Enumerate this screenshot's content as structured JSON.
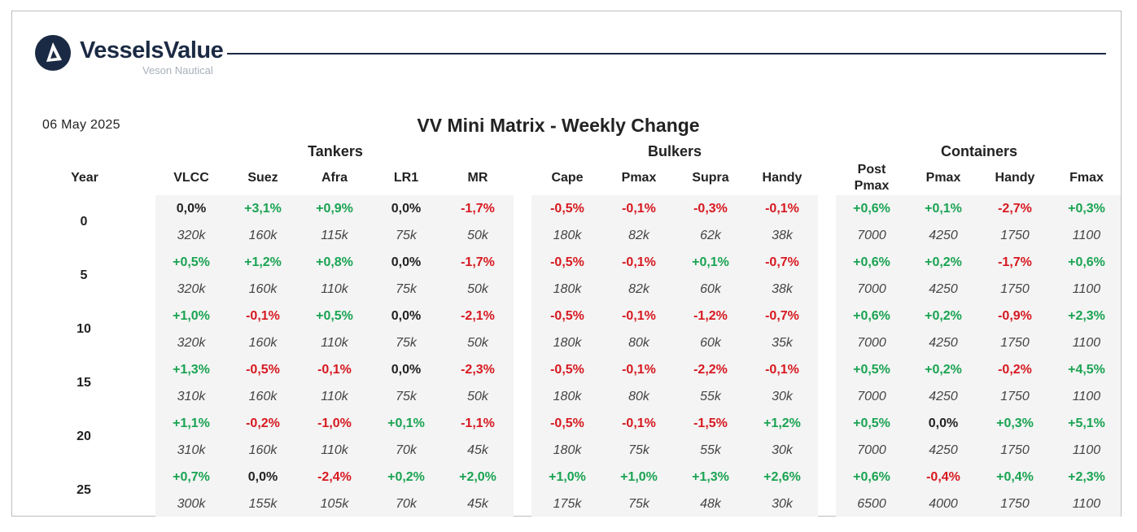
{
  "brand": {
    "name": "VesselsValue",
    "sub": "Veson Nautical"
  },
  "date": "06 May 2025",
  "title": "VV Mini Matrix - Weekly Change",
  "groups": [
    "Tankers",
    "Bulkers",
    "Containers"
  ],
  "year_label": "Year",
  "columns": [
    {
      "label": "VLCC",
      "group": "Tankers"
    },
    {
      "label": "Suez",
      "group": "Tankers"
    },
    {
      "label": "Afra",
      "group": "Tankers"
    },
    {
      "label": "LR1",
      "group": "Tankers"
    },
    {
      "label": "MR",
      "group": "Tankers"
    },
    {
      "label": "Cape",
      "group": "Bulkers"
    },
    {
      "label": "Pmax",
      "group": "Bulkers"
    },
    {
      "label": "Supra",
      "group": "Bulkers"
    },
    {
      "label": "Handy",
      "group": "Bulkers"
    },
    {
      "label": "Post Pmax",
      "group": "Containers"
    },
    {
      "label": "Pmax",
      "group": "Containers"
    },
    {
      "label": "Handy",
      "group": "Containers"
    },
    {
      "label": "Fmax",
      "group": "Containers"
    }
  ],
  "rows": [
    {
      "year": "0",
      "pct": [
        "0,0%",
        "+3,1%",
        "+0,9%",
        "0,0%",
        "-1,7%",
        "-0,5%",
        "-0,1%",
        "-0,3%",
        "-0,1%",
        "+0,6%",
        "+0,1%",
        "-2,7%",
        "+0,3%"
      ],
      "size": [
        "320k",
        "160k",
        "115k",
        "75k",
        "50k",
        "180k",
        "82k",
        "62k",
        "38k",
        "7000",
        "4250",
        "1750",
        "1100"
      ]
    },
    {
      "year": "5",
      "pct": [
        "+0,5%",
        "+1,2%",
        "+0,8%",
        "0,0%",
        "-1,7%",
        "-0,5%",
        "-0,1%",
        "+0,1%",
        "-0,7%",
        "+0,6%",
        "+0,2%",
        "-1,7%",
        "+0,6%"
      ],
      "size": [
        "320k",
        "160k",
        "110k",
        "75k",
        "50k",
        "180k",
        "82k",
        "60k",
        "38k",
        "7000",
        "4250",
        "1750",
        "1100"
      ]
    },
    {
      "year": "10",
      "pct": [
        "+1,0%",
        "-0,1%",
        "+0,5%",
        "0,0%",
        "-2,1%",
        "-0,5%",
        "-0,1%",
        "-1,2%",
        "-0,7%",
        "+0,6%",
        "+0,2%",
        "-0,9%",
        "+2,3%"
      ],
      "size": [
        "320k",
        "160k",
        "110k",
        "75k",
        "50k",
        "180k",
        "80k",
        "60k",
        "35k",
        "7000",
        "4250",
        "1750",
        "1100"
      ]
    },
    {
      "year": "15",
      "pct": [
        "+1,3%",
        "-0,5%",
        "-0,1%",
        "0,0%",
        "-2,3%",
        "-0,5%",
        "-0,1%",
        "-2,2%",
        "-0,1%",
        "+0,5%",
        "+0,2%",
        "-0,2%",
        "+4,5%"
      ],
      "size": [
        "310k",
        "160k",
        "110k",
        "75k",
        "50k",
        "180k",
        "80k",
        "55k",
        "30k",
        "7000",
        "4250",
        "1750",
        "1100"
      ]
    },
    {
      "year": "20",
      "pct": [
        "+1,1%",
        "-0,2%",
        "-1,0%",
        "+0,1%",
        "-1,1%",
        "-0,5%",
        "-0,1%",
        "-1,5%",
        "+1,2%",
        "+0,5%",
        "0,0%",
        "+0,3%",
        "+5,1%"
      ],
      "size": [
        "310k",
        "160k",
        "110k",
        "70k",
        "45k",
        "180k",
        "75k",
        "55k",
        "30k",
        "7000",
        "4250",
        "1750",
        "1100"
      ]
    },
    {
      "year": "25",
      "pct": [
        "+0,7%",
        "0,0%",
        "-2,4%",
        "+0,2%",
        "+2,0%",
        "+1,0%",
        "+1,0%",
        "+1,3%",
        "+2,6%",
        "+0,6%",
        "-0,4%",
        "+0,4%",
        "+2,3%"
      ],
      "size": [
        "300k",
        "155k",
        "105k",
        "70k",
        "45k",
        "175k",
        "75k",
        "48k",
        "30k",
        "6500",
        "4000",
        "1750",
        "1100"
      ]
    }
  ],
  "colors": {
    "positive": "#1aa352",
    "negative": "#d71920",
    "neutral": "#222222",
    "brand": "#1b2a44"
  }
}
